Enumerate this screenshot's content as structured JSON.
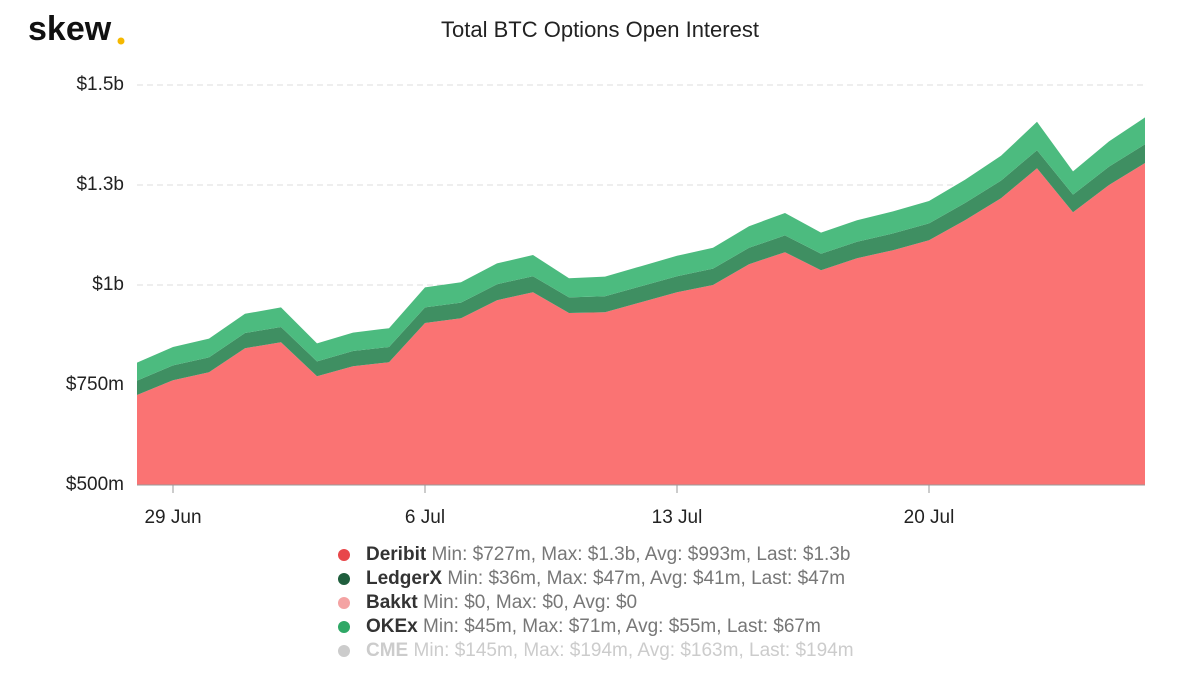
{
  "chart_data": {
    "type": "stacked-area",
    "logo": "skew",
    "title": "Total BTC Options Open Interest",
    "categories": [
      null,
      "29 Jun",
      null,
      null,
      null,
      null,
      null,
      null,
      "6 Jul",
      null,
      null,
      null,
      null,
      null,
      null,
      "13 Jul",
      null,
      null,
      null,
      null,
      null,
      null,
      "20 Jul",
      null,
      null,
      null,
      null,
      null,
      null
    ],
    "ylim": [
      500,
      1500
    ],
    "yticks": [
      {
        "value": 500,
        "label": "$500m"
      },
      {
        "value": 750,
        "label": "$750m"
      },
      {
        "value": 1000,
        "label": "$1b"
      },
      {
        "value": 1250,
        "label": "$1.3b"
      },
      {
        "value": 1500,
        "label": "$1.5b"
      }
    ],
    "grid": true,
    "series": [
      {
        "name": "Deribit",
        "color": "#fa7373",
        "legend_color": "#e8474a",
        "stats": "Min: $727m, Max: $1.3b, Avg: $993m, Last: $1.3b",
        "values": [
          725,
          762,
          782,
          842,
          857,
          772,
          797,
          807,
          905,
          917,
          962,
          982,
          930,
          932,
          957,
          982,
          1000,
          1052,
          1082,
          1037,
          1067,
          1087,
          1112,
          1162,
          1217,
          1292,
          1182,
          1250,
          1305
        ]
      },
      {
        "name": "LedgerX",
        "color": "#3f8f62",
        "legend_color": "#1f5e3d",
        "stats": "Min: $36m, Max: $47m, Avg: $41m, Last: $47m",
        "values": [
          36,
          37,
          37,
          38,
          38,
          37,
          38,
          38,
          39,
          39,
          40,
          40,
          39,
          40,
          40,
          40,
          41,
          41,
          42,
          41,
          41,
          42,
          42,
          43,
          44,
          45,
          44,
          46,
          47
        ]
      },
      {
        "name": "Bakkt",
        "color": "#f4a3a3",
        "legend_color": "#f4a3a3",
        "stats": "Min: $0, Max: $0, Avg: $0",
        "values": [
          0,
          0,
          0,
          0,
          0,
          0,
          0,
          0,
          0,
          0,
          0,
          0,
          0,
          0,
          0,
          0,
          0,
          0,
          0,
          0,
          0,
          0,
          0,
          0,
          0,
          0,
          0,
          0,
          0
        ]
      },
      {
        "name": "OKEx",
        "color": "#4cbb7f",
        "legend_color": "#2fa866",
        "stats": "Min: $45m, Max: $71m, Avg: $55m, Last: $67m",
        "values": [
          45,
          46,
          47,
          48,
          49,
          45,
          46,
          47,
          50,
          51,
          52,
          53,
          48,
          49,
          50,
          51,
          52,
          54,
          56,
          53,
          54,
          55,
          56,
          58,
          62,
          71,
          58,
          63,
          67
        ]
      },
      {
        "name": "CME",
        "color": "#cccccc",
        "legend_color": "#cccccc",
        "stats": "Min: $145m, Max: $194m, Avg: $163m, Last: $194m",
        "hidden": true
      }
    ]
  }
}
